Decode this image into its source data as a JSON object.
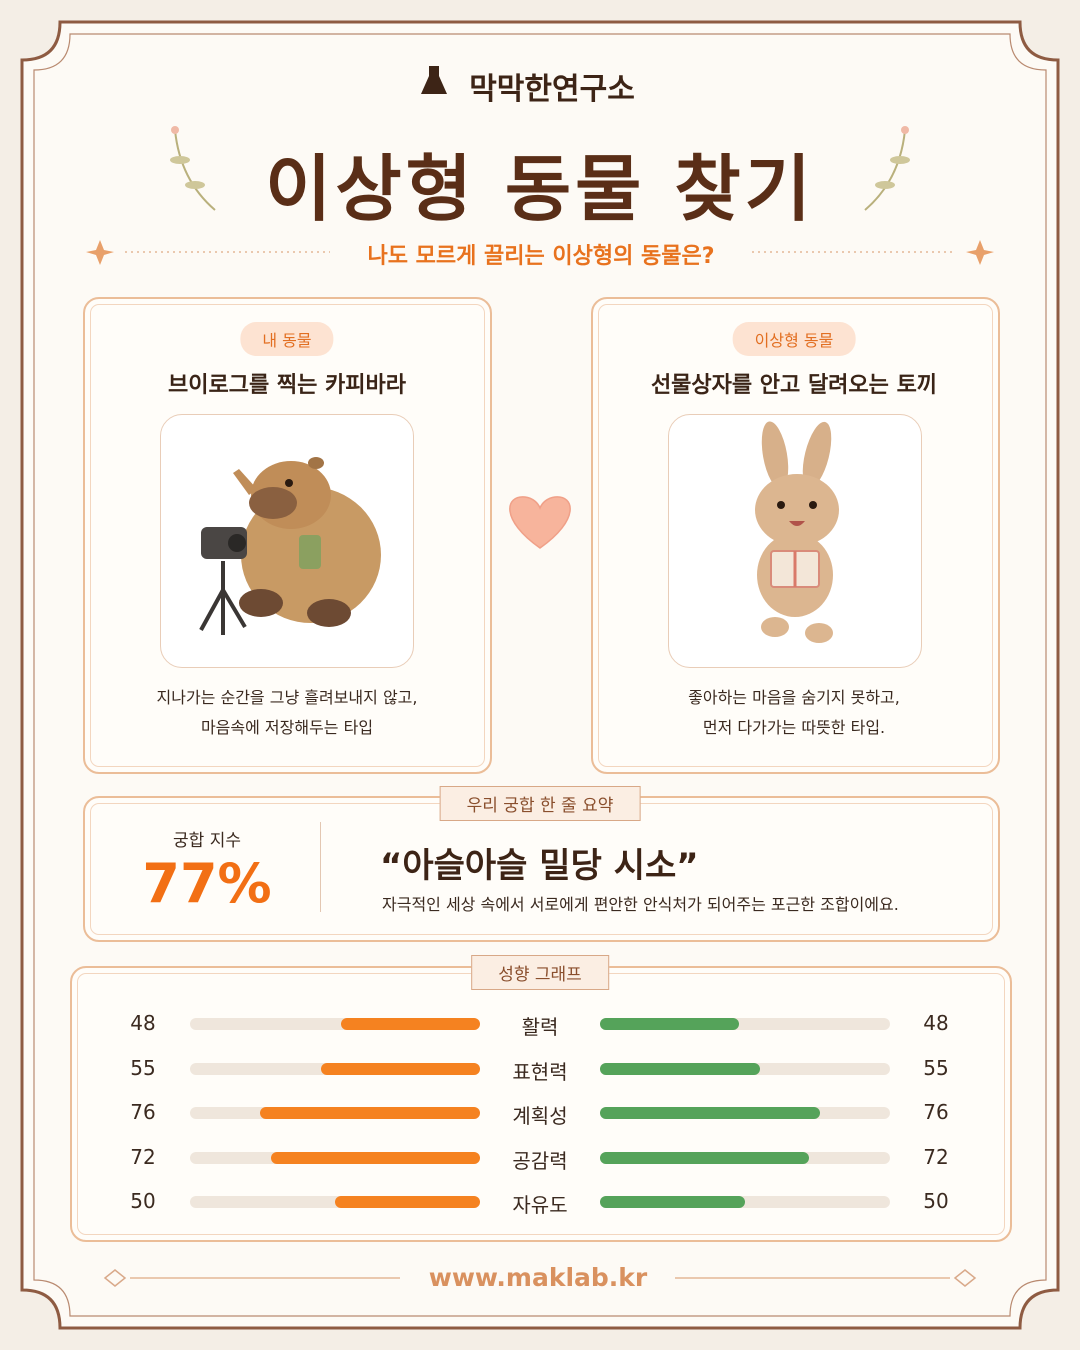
{
  "header": {
    "brand": "막막한연구소",
    "title": "이상형 동물 찾기",
    "subtitle": "나도 모르게 끌리는 이상형의 동물은?"
  },
  "cards": [
    {
      "tag": "내 동물",
      "name": "브이로그를 찍는 카피바라",
      "description": [
        "지나가는 순간을 그냥 흘려보내지 않고,",
        "마음속에 저장해두는 타입"
      ]
    },
    {
      "tag": "이상형 동물",
      "name": "선물상자를 안고 달려오는 토끼",
      "description": [
        "좋아하는 마음을 숨기지 못하고,",
        "먼저 다가가는 따뜻한 타입."
      ]
    }
  ],
  "summary": {
    "label": "우리 궁합 한 줄 요약",
    "score_label": "궁합 지수",
    "score": "77%",
    "headline": "“아슬아슬 밀당 시소”",
    "description": "자극적인 세상 속에서 서로에게 편안한 안식처가 되어주는 포근한 조합이에요."
  },
  "graph": {
    "label": "성향 그래프",
    "left_color": "#f58220",
    "right_color": "#55a35a",
    "rows": [
      {
        "trait": "활력",
        "left": 48,
        "right": 48
      },
      {
        "trait": "표현력",
        "left": 55,
        "right": 55
      },
      {
        "trait": "계획성",
        "left": 76,
        "right": 76
      },
      {
        "trait": "공감력",
        "left": 72,
        "right": 72
      },
      {
        "trait": "자유도",
        "left": 50,
        "right": 50
      }
    ]
  },
  "footer": {
    "url": "www.maklab.kr"
  }
}
